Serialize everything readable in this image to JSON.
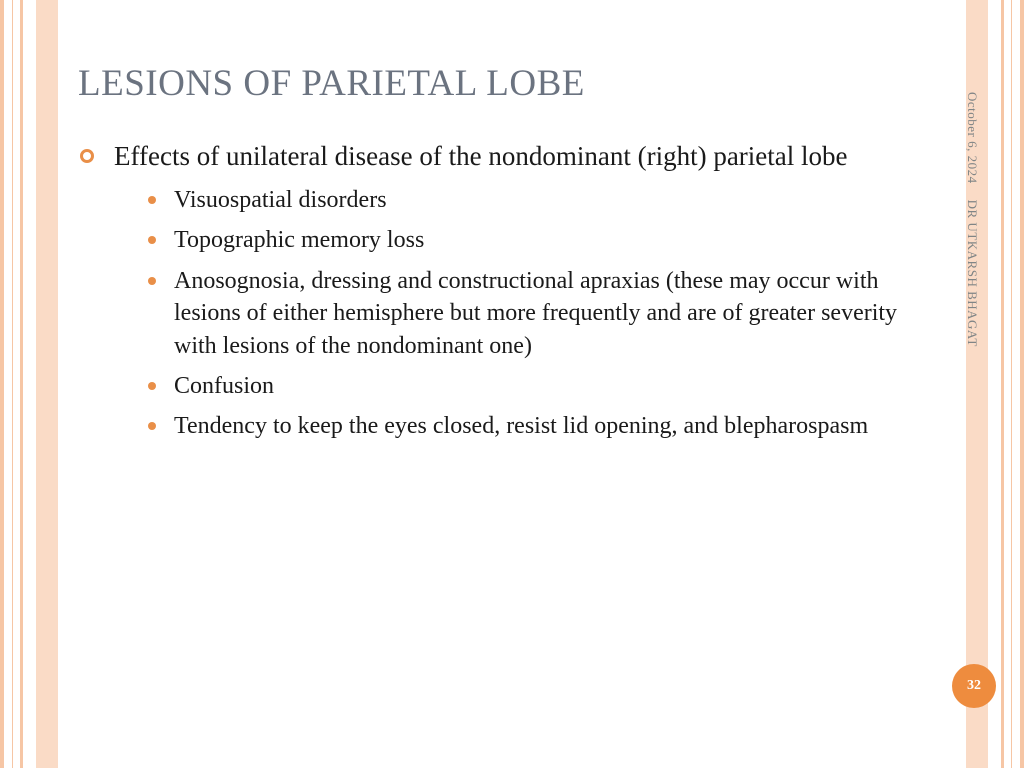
{
  "title": "LESIONS OF PARIETAL LOBE",
  "meta": {
    "date": "October 6, 2024",
    "author": "DR UTKARSH BHAGAT"
  },
  "page_number": "32",
  "main_point": "Effects of unilateral disease of the nondominant (right) parietal lobe",
  "sub_points": [
    "Visuospatial disorders",
    "Topographic memory loss",
    "Anosognosia, dressing and constructional apraxias (these may occur with lesions of either hemisphere but  more frequently and are of greater severity with lesions of the nondominant one)",
    "Confusion",
    "Tendency to keep the eyes closed, resist lid opening, and blepharospasm"
  ],
  "colors": {
    "border_outer": "#f6c6a5",
    "border_inner": "#fadbc6",
    "title_color": "#6b7380",
    "bullet_color": "#e98f48",
    "badge_color": "#ee8c3e",
    "text_color": "#1a1a1a",
    "meta_color": "#808586",
    "background": "#ffffff"
  },
  "typography": {
    "title_fontsize": 37,
    "main_bullet_fontsize": 27,
    "sub_bullet_fontsize": 24,
    "meta_fontsize": 13,
    "badge_fontsize": 14,
    "font_family": "Georgia, serif"
  },
  "layout": {
    "slide_width": 1024,
    "slide_height": 768
  }
}
